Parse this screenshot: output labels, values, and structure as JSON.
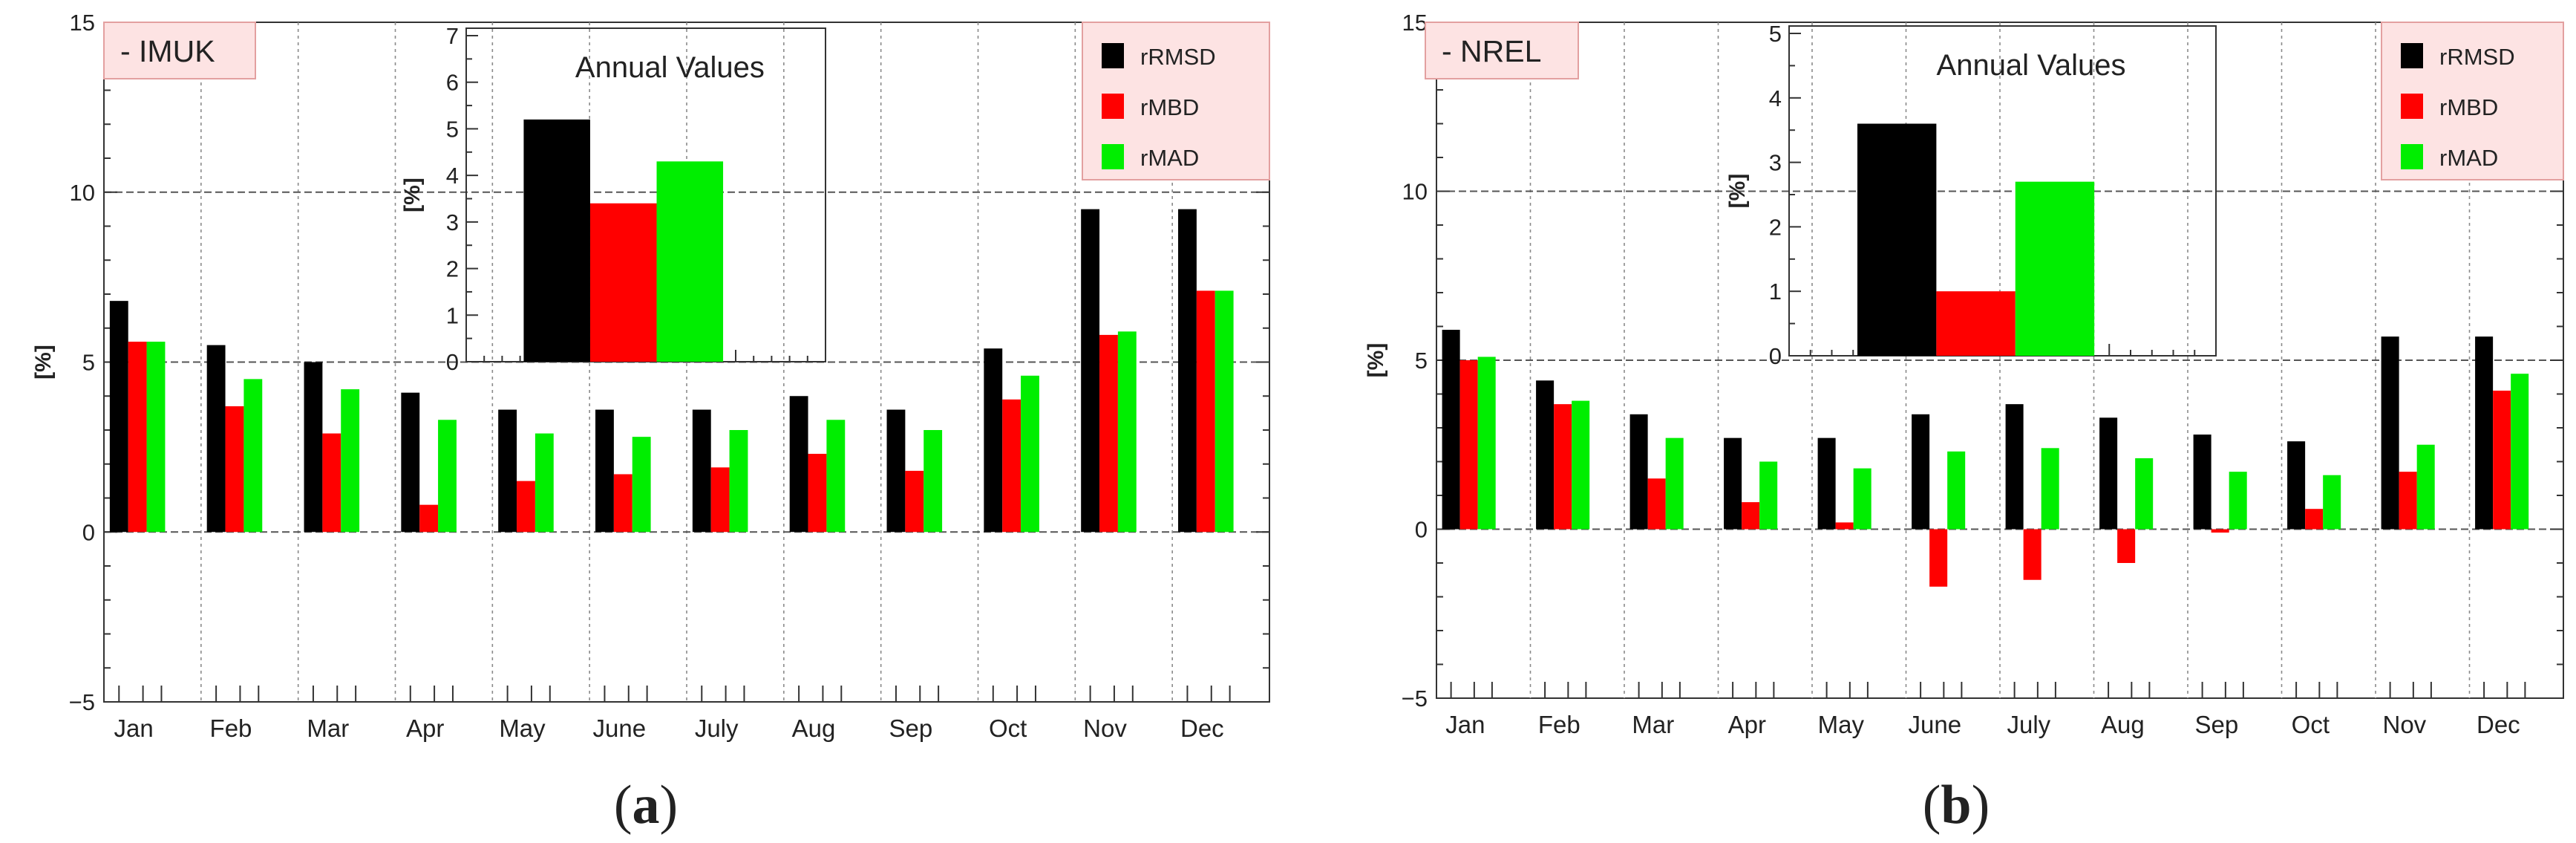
{
  "colors": {
    "rRMSD": "#000000",
    "rMBD": "#ff0000",
    "rMAD": "#00ee00",
    "tag_bg": "#fde3e3",
    "tag_border": "#e3a0a0"
  },
  "chart_data": [
    {
      "type": "bar",
      "panel": "a",
      "caption_letter": "a",
      "tag": "-  IMUK",
      "ylabel": "[%]",
      "ylim": [
        -5,
        15
      ],
      "yticks": [
        -5,
        0,
        5,
        10,
        15
      ],
      "categories": [
        "Jan",
        "Feb",
        "Mar",
        "Apr",
        "May",
        "June",
        "July",
        "Aug",
        "Sep",
        "Oct",
        "Nov",
        "Dec"
      ],
      "series": [
        {
          "name": "rRMSD",
          "values": [
            6.8,
            5.5,
            5.0,
            4.1,
            3.6,
            3.6,
            3.6,
            4.0,
            3.6,
            5.4,
            9.5,
            9.5
          ]
        },
        {
          "name": "rMBD",
          "values": [
            5.6,
            3.7,
            2.9,
            0.8,
            1.5,
            1.7,
            1.9,
            2.3,
            1.8,
            3.9,
            5.8,
            7.1
          ]
        },
        {
          "name": "rMAD",
          "values": [
            5.6,
            4.5,
            4.2,
            3.3,
            2.9,
            2.8,
            3.0,
            3.3,
            3.0,
            4.6,
            5.9,
            7.1
          ]
        }
      ],
      "legend": [
        "rRMSD",
        "rMBD",
        "rMAD"
      ],
      "legend_position": "top-right",
      "inset": {
        "title": "Annual Values",
        "ylabel": "[%]",
        "ylim": [
          0,
          7
        ],
        "yticks": [
          0,
          1,
          2,
          3,
          4,
          5,
          6,
          7
        ],
        "series": [
          {
            "name": "rRMSD",
            "value": 5.2
          },
          {
            "name": "rMBD",
            "value": 3.4
          },
          {
            "name": "rMAD",
            "value": 4.3
          }
        ]
      }
    },
    {
      "type": "bar",
      "panel": "b",
      "caption_letter": "b",
      "tag": "-  NREL",
      "ylabel": "[%]",
      "ylim": [
        -5,
        15
      ],
      "yticks": [
        -5,
        0,
        5,
        10,
        15
      ],
      "categories": [
        "Jan",
        "Feb",
        "Mar",
        "Apr",
        "May",
        "June",
        "July",
        "Aug",
        "Sep",
        "Oct",
        "Nov",
        "Dec"
      ],
      "series": [
        {
          "name": "rRMSD",
          "values": [
            5.9,
            4.4,
            3.4,
            2.7,
            2.7,
            3.4,
            3.7,
            3.3,
            2.8,
            2.6,
            5.7,
            5.7
          ]
        },
        {
          "name": "rMBD",
          "values": [
            5.0,
            3.7,
            1.5,
            0.8,
            0.2,
            -1.7,
            -1.5,
            -1.0,
            -0.1,
            0.6,
            1.7,
            4.1
          ]
        },
        {
          "name": "rMAD",
          "values": [
            5.1,
            3.8,
            2.7,
            2.0,
            1.8,
            2.3,
            2.4,
            2.1,
            1.7,
            1.6,
            2.5,
            4.6
          ]
        }
      ],
      "legend": [
        "rRMSD",
        "rMBD",
        "rMAD"
      ],
      "legend_position": "top-right",
      "inset": {
        "title": "Annual Values",
        "ylabel": "[%]",
        "ylim": [
          0,
          5
        ],
        "yticks": [
          0,
          1,
          2,
          3,
          4,
          5
        ],
        "series": [
          {
            "name": "rRMSD",
            "value": 3.6
          },
          {
            "name": "rMBD",
            "value": 1.0
          },
          {
            "name": "rMAD",
            "value": 2.7
          }
        ]
      }
    }
  ]
}
